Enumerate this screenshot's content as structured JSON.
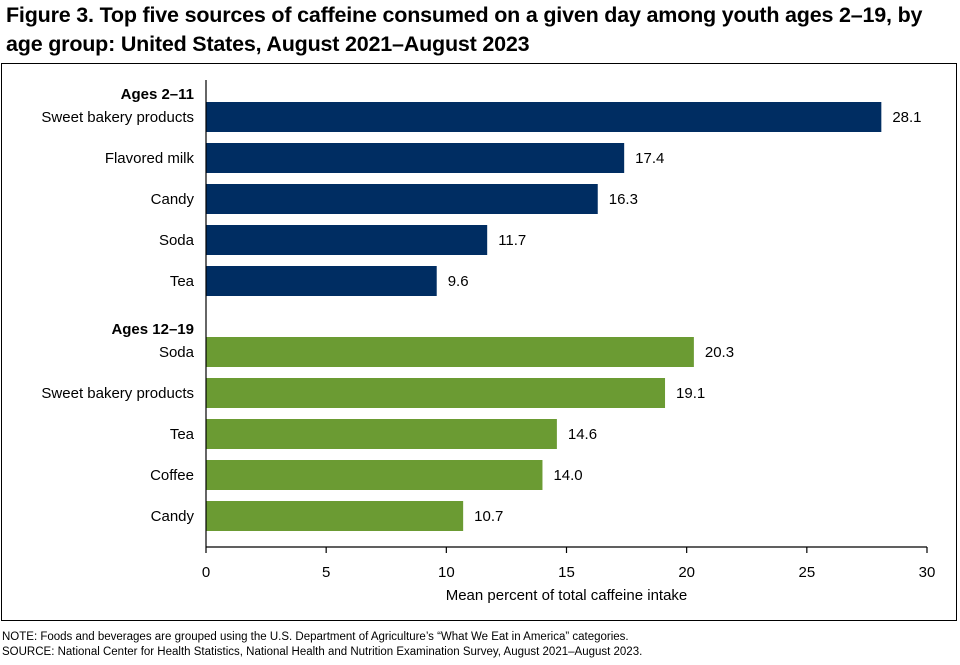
{
  "title": "Figure 3. Top five sources of caffeine consumed on a given day among youth ages 2–19, by age group: United States, August 2021–August 2023",
  "note": "NOTE: Foods and beverages are grouped using the U.S. Department of Agriculture’s “What We Eat in America” categories.",
  "source": "SOURCE: National Center for Health Statistics, National Health and Nutrition Examination Survey, August 2021–August 2023.",
  "chart_data": {
    "type": "bar",
    "orientation": "horizontal",
    "xlabel": "Mean percent of total caffeine intake",
    "xlim": [
      0,
      30
    ],
    "xticks": [
      0,
      5,
      10,
      15,
      20,
      25,
      30
    ],
    "grid": false,
    "groups": [
      {
        "name": "Ages 2–11",
        "color": "#002d62",
        "categories": [
          "Sweet bakery products",
          "Flavored milk",
          "Candy",
          "Soda",
          "Tea"
        ],
        "values": [
          28.1,
          17.4,
          16.3,
          11.7,
          9.6
        ],
        "labels": [
          "28.1",
          "17.4",
          "16.3",
          "11.7",
          "9.6"
        ]
      },
      {
        "name": "Ages 12–19",
        "color": "#6b9b33",
        "categories": [
          "Soda",
          "Sweet bakery products",
          "Tea",
          "Coffee",
          "Candy"
        ],
        "values": [
          20.3,
          19.1,
          14.6,
          14.0,
          10.7
        ],
        "labels": [
          "20.3",
          "19.1",
          "14.6",
          "14.0",
          "10.7"
        ]
      }
    ]
  }
}
